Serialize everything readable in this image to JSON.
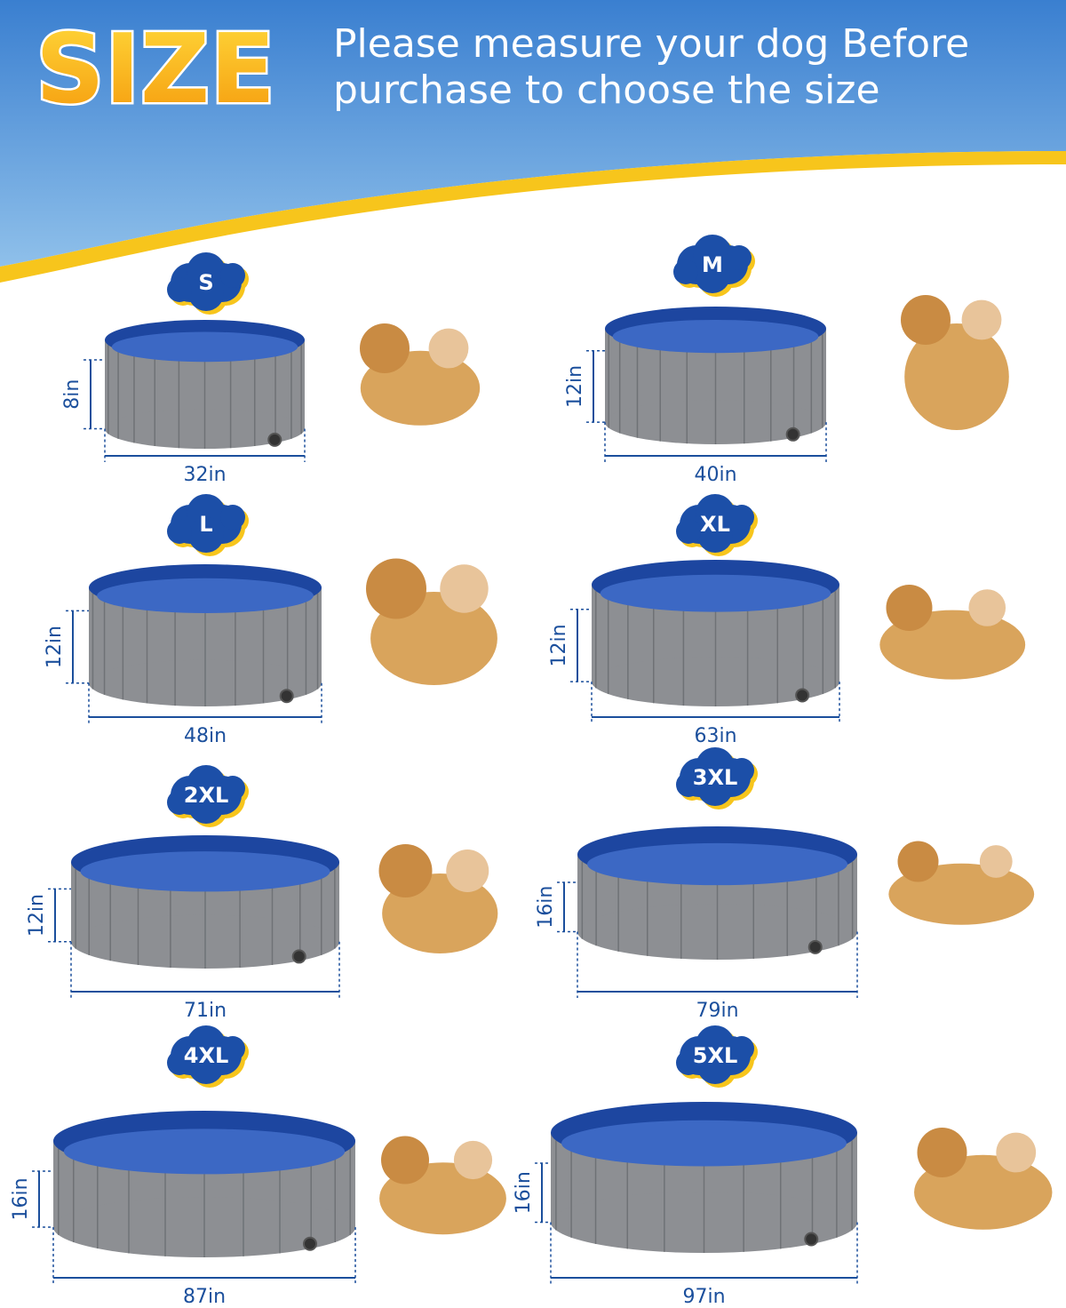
{
  "header": {
    "title": "SIZE",
    "subtitle": [
      "Please measure your dog Before",
      "purchase to choose the size"
    ]
  },
  "sizes": [
    {
      "label": "S",
      "height": "8in",
      "width": "32in"
    },
    {
      "label": "M",
      "height": "12in",
      "width": "40in"
    },
    {
      "label": "L",
      "height": "12in",
      "width": "48in"
    },
    {
      "label": "XL",
      "height": "12in",
      "width": "63in"
    },
    {
      "label": "2XL",
      "height": "12in",
      "width": "71in"
    },
    {
      "label": "3XL",
      "height": "16in",
      "width": "79in"
    },
    {
      "label": "4XL",
      "height": "16in",
      "width": "87in"
    },
    {
      "label": "5XL",
      "height": "16in",
      "width": "97in"
    }
  ]
}
